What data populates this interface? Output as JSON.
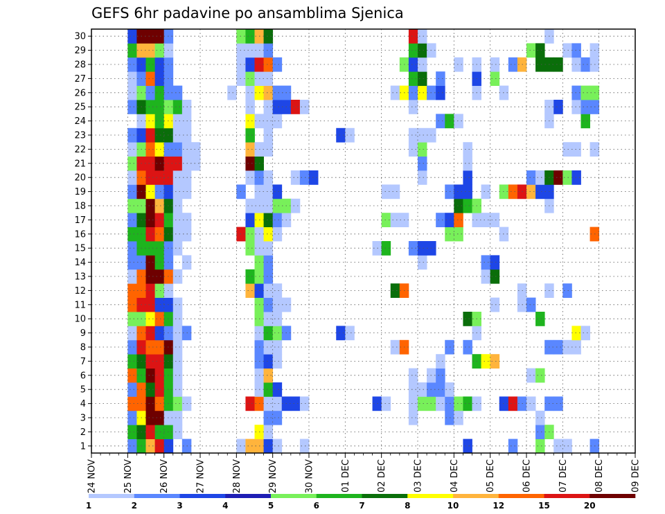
{
  "chart_data": {
    "type": "heatmap",
    "title": "GEFS 6hr padavine po ansamblima Sjenica",
    "y_ticks": [
      "1",
      "2",
      "3",
      "4",
      "5",
      "6",
      "7",
      "8",
      "9",
      "10",
      "11",
      "12",
      "13",
      "14",
      "15",
      "16",
      "17",
      "18",
      "19",
      "20",
      "21",
      "22",
      "23",
      "24",
      "25",
      "26",
      "27",
      "28",
      "29",
      "30"
    ],
    "x_ticks": [
      "24 NOV",
      "25 NOV",
      "26 NOV",
      "27 NOV",
      "28 NOV",
      "29 NOV",
      "30 NOV",
      "01 DEC",
      "02 DEC",
      "03 DEC",
      "04 DEC",
      "05 DEC",
      "06 DEC",
      "07 DEC",
      "08 DEC",
      "09 DEC"
    ],
    "colorbar": {
      "levels": [
        1,
        2,
        3,
        4,
        5,
        6,
        7,
        8,
        10,
        12,
        15,
        20
      ],
      "level_labels": [
        "1",
        "2",
        "3",
        "4",
        "5",
        "6",
        "7",
        "8",
        "10",
        "12",
        "15",
        "20"
      ],
      "colors": [
        "#b4c8ff",
        "#5a87ff",
        "#1e46e6",
        "#1e1eb4",
        "#78f05a",
        "#1eb41e",
        "#0a6e0a",
        "#ffff00",
        "#ffb43c",
        "#ff6400",
        "#dc1414",
        "#6e0000"
      ]
    },
    "cells": [
      {
        "day": "25 NOV",
        "h": 0,
        "ens": [
          1,
          2,
          3,
          4,
          5,
          6,
          7,
          8,
          9,
          10,
          11,
          12,
          13,
          14,
          15,
          16,
          17,
          18,
          19,
          20,
          21,
          22,
          23,
          24,
          25,
          26,
          27,
          28,
          29,
          30
        ],
        "lvl": [
          2,
          6,
          2,
          10,
          2,
          10,
          6,
          2,
          1,
          5,
          10,
          10,
          1,
          2,
          2,
          6,
          2,
          5,
          2,
          1,
          5,
          1,
          2,
          0,
          2,
          1,
          1,
          2,
          6,
          3
        ]
      },
      {
        "day": "25 NOV",
        "h": 6,
        "ens": [
          1,
          2,
          3,
          4,
          5,
          6,
          7,
          8,
          9,
          10,
          11,
          12,
          13,
          14,
          15,
          16,
          17,
          18,
          19,
          20,
          21,
          22,
          23,
          24,
          25,
          26,
          27,
          28,
          29,
          30
        ],
        "lvl": [
          6,
          7,
          8,
          10,
          10,
          6,
          7,
          11,
          10,
          5,
          11,
          10,
          10,
          2,
          6,
          6,
          7,
          5,
          12,
          10,
          11,
          5,
          3,
          1,
          7,
          5,
          2,
          3,
          9,
          12
        ]
      },
      {
        "day": "25 NOV",
        "h": 12,
        "ens": [
          1,
          2,
          3,
          4,
          5,
          6,
          7,
          8,
          9,
          10,
          11,
          12,
          13,
          14,
          15,
          16,
          17,
          18,
          19,
          20,
          21,
          22,
          23,
          24,
          25,
          26,
          27,
          28,
          29,
          30
        ],
        "lvl": [
          9,
          11,
          12,
          12,
          7,
          12,
          11,
          10,
          11,
          8,
          11,
          11,
          12,
          12,
          6,
          11,
          12,
          12,
          8,
          11,
          11,
          10,
          11,
          8,
          6,
          2,
          10,
          6,
          9,
          12
        ]
      },
      {
        "day": "25 NOV",
        "h": 18,
        "ens": [
          1,
          2,
          3,
          4,
          5,
          6,
          7,
          8,
          9,
          10,
          11,
          12,
          13,
          14,
          15,
          16,
          17,
          18,
          19,
          20,
          21,
          22,
          23,
          24,
          25,
          26,
          27,
          28,
          29,
          30
        ],
        "lvl": [
          11,
          6,
          12,
          10,
          11,
          11,
          11,
          10,
          3,
          10,
          3,
          5,
          12,
          6,
          6,
          10,
          11,
          9,
          2,
          11,
          12,
          8,
          7,
          6,
          6,
          6,
          3,
          3,
          5,
          12
        ]
      },
      {
        "day": "26 NOV",
        "h": 0,
        "ens": [
          1,
          2,
          3,
          4,
          5,
          6,
          7,
          8,
          9,
          10,
          11,
          12,
          13,
          14,
          15,
          16,
          17,
          18,
          19,
          20,
          21,
          22,
          23,
          24,
          25,
          26,
          27,
          28,
          29,
          30
        ],
        "lvl": [
          3,
          6,
          1,
          6,
          6,
          6,
          7,
          12,
          2,
          6,
          3,
          1,
          10,
          2,
          2,
          7,
          6,
          7,
          3,
          11,
          11,
          2,
          7,
          8,
          5,
          2,
          2,
          2,
          1,
          2
        ]
      },
      {
        "day": "26 NOV",
        "h": 6,
        "ens": [
          2,
          3,
          4,
          5,
          6,
          7,
          8,
          9,
          10,
          11,
          13,
          15,
          16,
          17,
          18,
          19,
          20,
          21,
          22,
          23,
          24,
          25,
          26
        ],
        "lvl": [
          1,
          1,
          5,
          1,
          1,
          1,
          1,
          1,
          1,
          1,
          1,
          1,
          1,
          1,
          1,
          1,
          1,
          11,
          2,
          1,
          1,
          6,
          2
        ]
      },
      {
        "day": "26 NOV",
        "h": 12,
        "ens": [
          1,
          4,
          9,
          14,
          16,
          17,
          19,
          20,
          21,
          22,
          23,
          24,
          25
        ],
        "lvl": [
          2,
          1,
          2,
          1,
          1,
          1,
          1,
          1,
          1,
          1,
          1,
          1,
          1
        ]
      },
      {
        "day": "26 NOV",
        "h": 18,
        "ens": [
          21,
          22
        ],
        "lvl": [
          1,
          1
        ]
      },
      {
        "day": "27 NOV",
        "h": 18,
        "ens": [
          26
        ],
        "lvl": [
          1
        ]
      },
      {
        "day": "28 NOV",
        "h": 0,
        "ens": [
          1,
          16,
          19,
          27,
          28,
          29,
          30
        ],
        "lvl": [
          1,
          11,
          2,
          1,
          1,
          1,
          5
        ]
      },
      {
        "day": "28 NOV",
        "h": 6,
        "ens": [
          1,
          4,
          12,
          13,
          15,
          16,
          17,
          18,
          20,
          21,
          22,
          23,
          24,
          25,
          26,
          27,
          28,
          29,
          30
        ],
        "lvl": [
          9,
          11,
          9,
          6,
          5,
          5,
          3,
          1,
          1,
          12,
          9,
          6,
          8,
          1,
          1,
          5,
          3,
          1,
          6
        ]
      },
      {
        "day": "28 NOV",
        "h": 12,
        "ens": [
          1,
          2,
          4,
          5,
          6,
          7,
          8,
          9,
          10,
          11,
          12,
          13,
          14,
          15,
          16,
          17,
          18,
          19,
          20,
          21,
          22,
          24,
          26,
          27,
          28,
          29,
          30
        ],
        "lvl": [
          9,
          8,
          10,
          1,
          1,
          2,
          2,
          1,
          5,
          5,
          3,
          5,
          5,
          1,
          1,
          8,
          1,
          1,
          2,
          7,
          1,
          1,
          8,
          1,
          11,
          1,
          9
        ]
      },
      {
        "day": "28 NOV",
        "h": 18,
        "ens": [
          1,
          2,
          3,
          4,
          5,
          6,
          7,
          8,
          9,
          10,
          11,
          12,
          13,
          14,
          15,
          16,
          17,
          18,
          19,
          20,
          22,
          23,
          24,
          25,
          26,
          27,
          28,
          29,
          30
        ],
        "lvl": [
          3,
          1,
          2,
          1,
          6,
          9,
          3,
          1,
          6,
          1,
          2,
          1,
          2,
          2,
          1,
          8,
          7,
          1,
          1,
          1,
          1,
          1,
          1,
          1,
          9,
          1,
          10,
          2,
          7
        ]
      },
      {
        "day": "29 NOV",
        "h": 0,
        "ens": [
          1,
          3,
          4,
          5,
          7,
          8,
          9,
          10,
          11,
          12,
          16,
          17,
          18,
          19,
          24,
          25,
          26,
          28
        ],
        "lvl": [
          1,
          2,
          1,
          3,
          1,
          1,
          5,
          1,
          1,
          1,
          1,
          2,
          5,
          3,
          1,
          3,
          2,
          2
        ]
      },
      {
        "day": "29 NOV",
        "h": 6,
        "ens": [
          4,
          9,
          11,
          17,
          18,
          25,
          26
        ],
        "lvl": [
          3,
          2,
          1,
          1,
          5,
          3,
          2
        ]
      },
      {
        "day": "29 NOV",
        "h": 12,
        "ens": [
          4,
          18,
          20,
          25
        ],
        "lvl": [
          3,
          1,
          1,
          11
        ]
      },
      {
        "day": "29 NOV",
        "h": 18,
        "ens": [
          1,
          4,
          20,
          25
        ],
        "lvl": [
          1,
          1,
          2,
          1
        ]
      },
      {
        "day": "30 NOV",
        "h": 0,
        "ens": [
          20
        ],
        "lvl": [
          3
        ]
      },
      {
        "day": "30 NOV",
        "h": 18,
        "ens": [
          9,
          23
        ],
        "lvl": [
          3,
          3
        ]
      },
      {
        "day": "01 DEC",
        "h": 0,
        "ens": [
          9,
          23
        ],
        "lvl": [
          1,
          1
        ]
      },
      {
        "day": "01 DEC",
        "h": 18,
        "ens": [
          4,
          15
        ],
        "lvl": [
          3,
          1
        ]
      },
      {
        "day": "02 DEC",
        "h": 0,
        "ens": [
          4,
          15,
          17,
          19
        ],
        "lvl": [
          1,
          6,
          5,
          1
        ]
      },
      {
        "day": "02 DEC",
        "h": 6,
        "ens": [
          8,
          12,
          17,
          19,
          26
        ],
        "lvl": [
          1,
          7,
          1,
          1,
          1
        ]
      },
      {
        "day": "02 DEC",
        "h": 12,
        "ens": [
          8,
          12,
          17,
          26,
          28
        ],
        "lvl": [
          10,
          10,
          1,
          8,
          5
        ]
      },
      {
        "day": "02 DEC",
        "h": 18,
        "ens": [
          3,
          4,
          5,
          6,
          15,
          22,
          23,
          25,
          26,
          27,
          28,
          29,
          30
        ],
        "lvl": [
          1,
          1,
          1,
          1,
          2,
          1,
          1,
          1,
          2,
          6,
          3,
          6,
          11
        ]
      },
      {
        "day": "03 DEC",
        "h": 0,
        "ens": [
          4,
          5,
          14,
          15,
          20,
          21,
          22,
          23,
          26,
          27,
          28,
          29,
          30
        ],
        "lvl": [
          5,
          1,
          1,
          3,
          1,
          2,
          5,
          1,
          8,
          7,
          1,
          7,
          1
        ]
      },
      {
        "day": "03 DEC",
        "h": 6,
        "ens": [
          4,
          5,
          6,
          15,
          23,
          26,
          29
        ],
        "lvl": [
          5,
          2,
          1,
          3,
          1,
          2,
          1
        ]
      },
      {
        "day": "03 DEC",
        "h": 12,
        "ens": [
          4,
          5,
          6,
          7,
          17,
          24,
          26,
          27
        ],
        "lvl": [
          1,
          2,
          2,
          1,
          2,
          2,
          3,
          2
        ]
      },
      {
        "day": "03 DEC",
        "h": 18,
        "ens": [
          3,
          4,
          5,
          8,
          16,
          17,
          19,
          24
        ],
        "lvl": [
          2,
          2,
          1,
          2,
          5,
          3,
          2,
          6
        ]
      },
      {
        "day": "04 DEC",
        "h": 0,
        "ens": [
          3,
          4,
          16,
          17,
          18,
          19,
          24,
          28
        ],
        "lvl": [
          1,
          5,
          5,
          10,
          7,
          3,
          1,
          1
        ]
      },
      {
        "day": "04 DEC",
        "h": 6,
        "ens": [
          1,
          4,
          8,
          10,
          18,
          19,
          20,
          21,
          22
        ],
        "lvl": [
          3,
          6,
          2,
          7,
          6,
          3,
          3,
          1,
          1
        ]
      },
      {
        "day": "04 DEC",
        "h": 12,
        "ens": [
          4,
          7,
          9,
          10,
          17,
          18,
          26,
          27,
          28
        ],
        "lvl": [
          1,
          6,
          1,
          5,
          1,
          5,
          1,
          3,
          1
        ]
      },
      {
        "day": "04 DEC",
        "h": 18,
        "ens": [
          7,
          13,
          14,
          17,
          19
        ],
        "lvl": [
          8,
          1,
          2,
          1,
          1
        ]
      },
      {
        "day": "05 DEC",
        "h": 0,
        "ens": [
          7,
          11,
          13,
          14,
          17,
          27,
          28
        ],
        "lvl": [
          9,
          1,
          7,
          3,
          1,
          5,
          1
        ]
      },
      {
        "day": "05 DEC",
        "h": 6,
        "ens": [
          4,
          16,
          19,
          26
        ],
        "lvl": [
          3,
          1,
          5,
          1
        ]
      },
      {
        "day": "05 DEC",
        "h": 12,
        "ens": [
          1,
          4,
          19,
          28
        ],
        "lvl": [
          2,
          11,
          10,
          2
        ]
      },
      {
        "day": "05 DEC",
        "h": 18,
        "ens": [
          4,
          11,
          12,
          19,
          28
        ],
        "lvl": [
          2,
          1,
          1,
          11,
          9
        ]
      },
      {
        "day": "06 DEC",
        "h": 0,
        "ens": [
          4,
          6,
          11,
          19,
          20,
          29
        ],
        "lvl": [
          1,
          1,
          2,
          9,
          2,
          5
        ]
      },
      {
        "day": "06 DEC",
        "h": 6,
        "ens": [
          1,
          2,
          3,
          6,
          10,
          19,
          20,
          28,
          29
        ],
        "lvl": [
          5,
          2,
          1,
          5,
          6,
          3,
          1,
          7,
          7
        ]
      },
      {
        "day": "06 DEC",
        "h": 12,
        "ens": [
          2,
          4,
          8,
          12,
          18,
          19,
          20,
          24,
          25,
          28,
          30
        ],
        "lvl": [
          5,
          2,
          2,
          1,
          1,
          3,
          7,
          1,
          1,
          7,
          1
        ]
      },
      {
        "day": "06 DEC",
        "h": 18,
        "ens": [
          1,
          4,
          8,
          20,
          25,
          28
        ],
        "lvl": [
          1,
          2,
          2,
          12,
          3,
          7
        ]
      },
      {
        "day": "07 DEC",
        "h": 0,
        "ens": [
          1,
          8,
          12,
          20,
          22,
          29
        ],
        "lvl": [
          1,
          1,
          2,
          5,
          1,
          1
        ]
      },
      {
        "day": "07 DEC",
        "h": 6,
        "ens": [
          8,
          9,
          20,
          22,
          25,
          26,
          28,
          29
        ],
        "lvl": [
          1,
          8,
          3,
          1,
          1,
          2,
          1,
          2
        ]
      },
      {
        "day": "07 DEC",
        "h": 12,
        "ens": [
          9,
          24,
          25,
          26,
          28
        ],
        "lvl": [
          1,
          6,
          2,
          5,
          2
        ]
      },
      {
        "day": "07 DEC",
        "h": 18,
        "ens": [
          1,
          16,
          22,
          25,
          26,
          28,
          29
        ],
        "lvl": [
          2,
          10,
          1,
          2,
          5,
          1,
          1
        ]
      }
    ]
  }
}
